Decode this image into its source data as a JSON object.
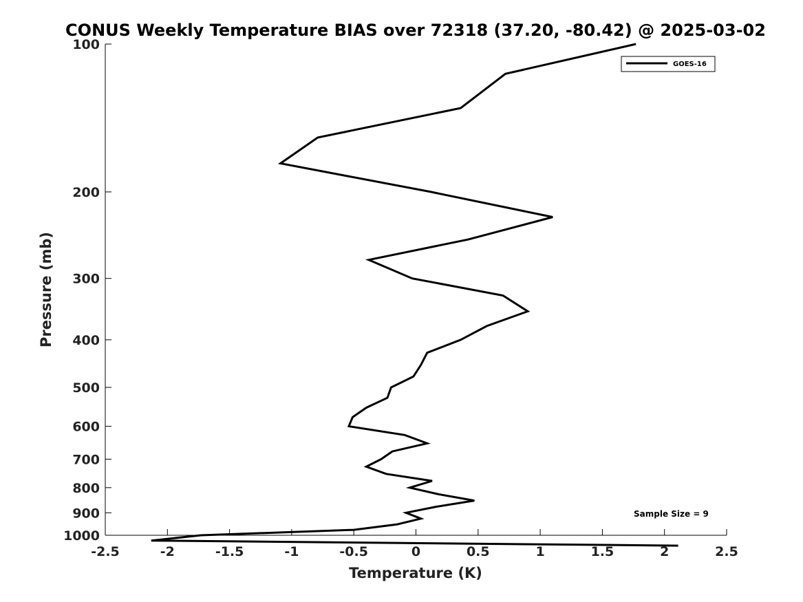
{
  "chart_data": {
    "type": "line",
    "title": "CONUS Weekly Temperature BIAS over 72318 (37.20, -80.42) @ 2025-03-02",
    "xlabel": "Temperature (K)",
    "ylabel": "Pressure (mb)",
    "xlim": [
      -2.5,
      2.5
    ],
    "ylim": [
      1000,
      100
    ],
    "yscale": "log",
    "x_ticks": [
      "-2.5",
      "-2",
      "-1.5",
      "-1",
      "-0.5",
      "0",
      "0.5",
      "1",
      "1.5",
      "2",
      "2.5"
    ],
    "y_ticks": [
      "100",
      "200",
      "300",
      "400",
      "500",
      "600",
      "700",
      "800",
      "900",
      "1000"
    ],
    "grid": false,
    "legend_position": "top-right",
    "annotation": "Sample Size = 9",
    "series": [
      {
        "name": "GOES-16",
        "color": "#000000",
        "points": [
          {
            "x": 1.77,
            "y": 100
          },
          {
            "x": 0.72,
            "y": 115
          },
          {
            "x": 0.36,
            "y": 135
          },
          {
            "x": -0.79,
            "y": 155
          },
          {
            "x": -1.09,
            "y": 175
          },
          {
            "x": 0.12,
            "y": 200
          },
          {
            "x": 1.1,
            "y": 225
          },
          {
            "x": 0.42,
            "y": 250
          },
          {
            "x": -0.38,
            "y": 275
          },
          {
            "x": -0.03,
            "y": 300
          },
          {
            "x": 0.7,
            "y": 325
          },
          {
            "x": 0.9,
            "y": 350
          },
          {
            "x": 0.57,
            "y": 375
          },
          {
            "x": 0.36,
            "y": 400
          },
          {
            "x": 0.09,
            "y": 425
          },
          {
            "x": 0.04,
            "y": 450
          },
          {
            "x": -0.02,
            "y": 475
          },
          {
            "x": -0.2,
            "y": 500
          },
          {
            "x": -0.23,
            "y": 525
          },
          {
            "x": -0.4,
            "y": 550
          },
          {
            "x": -0.51,
            "y": 575
          },
          {
            "x": -0.54,
            "y": 600
          },
          {
            "x": -0.09,
            "y": 625
          },
          {
            "x": 0.09,
            "y": 650
          },
          {
            "x": -0.19,
            "y": 675
          },
          {
            "x": -0.28,
            "y": 700
          },
          {
            "x": -0.4,
            "y": 725
          },
          {
            "x": -0.24,
            "y": 750
          },
          {
            "x": 0.13,
            "y": 775
          },
          {
            "x": -0.05,
            "y": 800
          },
          {
            "x": 0.18,
            "y": 825
          },
          {
            "x": 0.47,
            "y": 850
          },
          {
            "x": 0.16,
            "y": 875
          },
          {
            "x": -0.08,
            "y": 900
          },
          {
            "x": 0.04,
            "y": 925
          },
          {
            "x": -0.15,
            "y": 950
          },
          {
            "x": -0.5,
            "y": 975
          },
          {
            "x": -1.73,
            "y": 1000
          },
          {
            "x": -2.13,
            "y": 1025
          },
          {
            "x": 2.11,
            "y": 1050
          }
        ]
      }
    ]
  }
}
